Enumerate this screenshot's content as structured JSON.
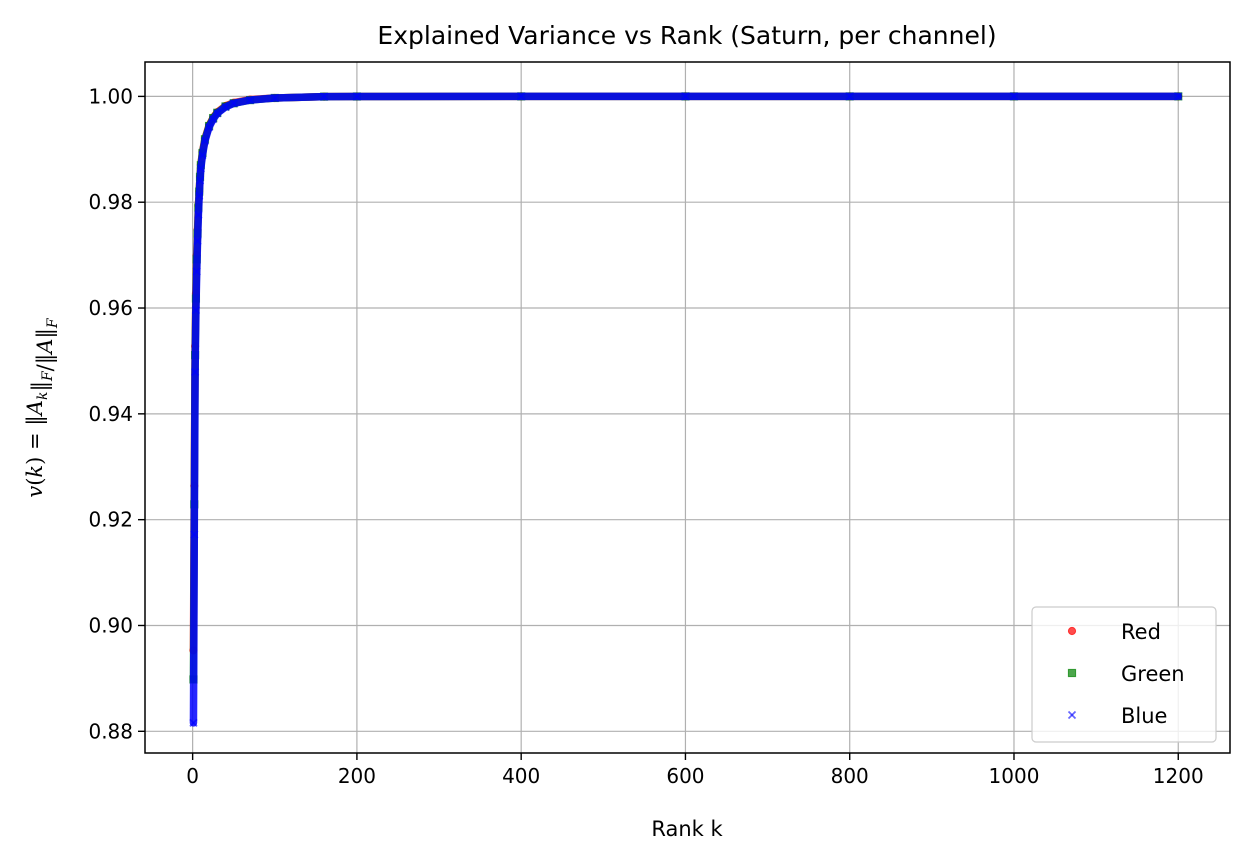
{
  "chart_data": {
    "type": "scatter",
    "title": "Explained Variance vs Rank (Saturn, per channel)",
    "xlabel": "Rank k",
    "ylabel": "v(k) = ‖A_k‖_F/‖A‖_F",
    "xlim": [
      -58,
      1263
    ],
    "ylim": [
      0.8759,
      1.0065
    ],
    "x_ticks": [
      0,
      200,
      400,
      600,
      800,
      1000,
      1200
    ],
    "y_ticks": [
      0.88,
      0.9,
      0.92,
      0.94,
      0.96,
      0.98,
      1.0
    ],
    "grid": true,
    "legend_position": "lower-right",
    "series": [
      {
        "name": "Red",
        "color": "#ff0000",
        "marker": "circle",
        "points": [
          [
            1,
            0.8953
          ],
          [
            2,
            0.9264
          ],
          [
            3,
            0.9528
          ],
          [
            4,
            0.9628
          ],
          [
            5,
            0.97
          ],
          [
            6,
            0.9748
          ],
          [
            7,
            0.9793
          ],
          [
            8,
            0.9821
          ],
          [
            9,
            0.9849
          ],
          [
            10,
            0.9871
          ],
          [
            12,
            0.9895
          ],
          [
            15,
            0.992
          ],
          [
            20,
            0.9945
          ],
          [
            25,
            0.996
          ],
          [
            30,
            0.997
          ],
          [
            40,
            0.9982
          ],
          [
            50,
            0.9988
          ],
          [
            70,
            0.9994
          ],
          [
            100,
            0.9997
          ],
          [
            160,
            0.99995
          ],
          [
            200,
            0.99998
          ],
          [
            400,
            1.0
          ],
          [
            600,
            1.0
          ],
          [
            800,
            1.0
          ],
          [
            1000,
            1.0
          ],
          [
            1200,
            1.0
          ]
        ]
      },
      {
        "name": "Green",
        "color": "#008000",
        "marker": "square",
        "points": [
          [
            1,
            0.8898
          ],
          [
            2,
            0.9229
          ],
          [
            3,
            0.9511
          ],
          [
            4,
            0.9618
          ],
          [
            5,
            0.9692
          ],
          [
            6,
            0.9741
          ],
          [
            7,
            0.979
          ],
          [
            8,
            0.982
          ],
          [
            9,
            0.9848
          ],
          [
            10,
            0.987
          ],
          [
            12,
            0.9893
          ],
          [
            15,
            0.9919
          ],
          [
            20,
            0.9944
          ],
          [
            25,
            0.9959
          ],
          [
            30,
            0.9969
          ],
          [
            40,
            0.9981
          ],
          [
            50,
            0.9987
          ],
          [
            70,
            0.9993
          ],
          [
            100,
            0.9997
          ],
          [
            160,
            0.99995
          ],
          [
            200,
            0.99998
          ],
          [
            400,
            1.0
          ],
          [
            600,
            1.0
          ],
          [
            800,
            1.0
          ],
          [
            1000,
            1.0
          ],
          [
            1200,
            1.0
          ]
        ]
      },
      {
        "name": "Blue",
        "color": "#0000ff",
        "marker": "x",
        "points": [
          [
            1,
            0.8816
          ],
          [
            2,
            0.9172
          ],
          [
            3,
            0.9479
          ],
          [
            4,
            0.9596
          ],
          [
            5,
            0.9669
          ],
          [
            6,
            0.9727
          ],
          [
            7,
            0.9776
          ],
          [
            8,
            0.9812
          ],
          [
            9,
            0.9841
          ],
          [
            10,
            0.9864
          ],
          [
            12,
            0.9889
          ],
          [
            15,
            0.9916
          ],
          [
            20,
            0.9942
          ],
          [
            25,
            0.9957
          ],
          [
            30,
            0.9968
          ],
          [
            40,
            0.998
          ],
          [
            50,
            0.9987
          ],
          [
            70,
            0.9993
          ],
          [
            100,
            0.9997
          ],
          [
            160,
            0.99995
          ],
          [
            200,
            0.99998
          ],
          [
            400,
            1.0
          ],
          [
            600,
            1.0
          ],
          [
            800,
            1.0
          ],
          [
            1000,
            1.0
          ],
          [
            1200,
            1.0
          ]
        ]
      }
    ]
  }
}
